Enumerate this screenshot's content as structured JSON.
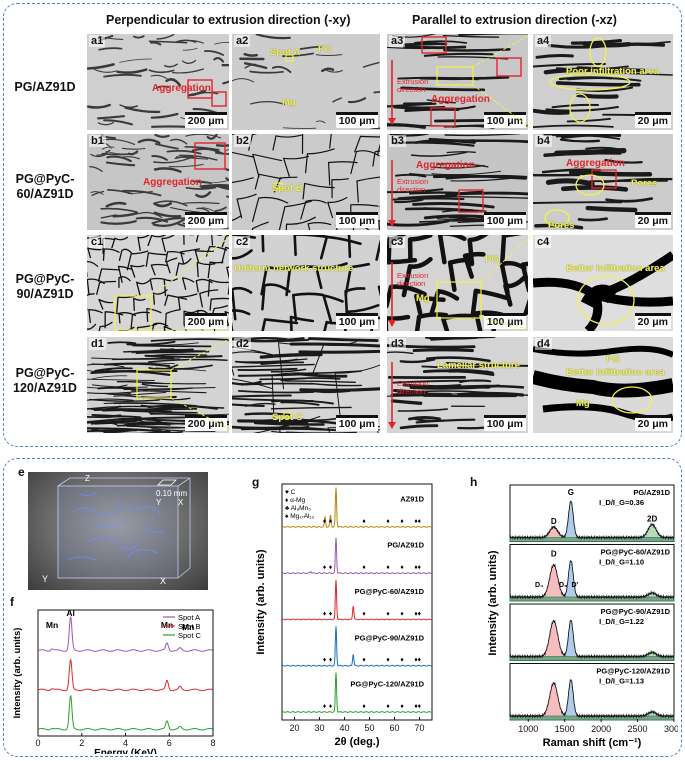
{
  "top": {
    "col_headers": [
      "Perpendicular to extrusion direction (-xy)",
      "Parallel to extrusion direction (-xz)"
    ],
    "rows": [
      {
        "label": "PG/AZ91D"
      },
      {
        "label": "PG@PyC-60/AZ91D"
      },
      {
        "label": "PG@PyC-90/AZ91D"
      },
      {
        "label": "PG@PyC-120/AZ91D"
      }
    ],
    "panels": {
      "a1": {
        "label": "a1",
        "scale": "200 μm",
        "ann": [
          "Aggregation"
        ]
      },
      "a2": {
        "label": "a2",
        "scale": "100 μm",
        "ann": [
          "Spot A",
          "PG",
          "Mg"
        ]
      },
      "a3": {
        "label": "a3",
        "scale": "100 μm",
        "ann": [
          "Aggregation",
          "Extrusion direction"
        ]
      },
      "a4": {
        "label": "a4",
        "scale": "20 μm",
        "ann": [
          "Poor infiltration area"
        ]
      },
      "b1": {
        "label": "b1",
        "scale": "200 μm",
        "ann": [
          "Aggregation"
        ]
      },
      "b2": {
        "label": "b2",
        "scale": "100 μm",
        "ann": [
          "Spot B"
        ]
      },
      "b3": {
        "label": "b3",
        "scale": "100 μm",
        "ann": [
          "Aggregation",
          "Extrusion direction"
        ]
      },
      "b4": {
        "label": "b4",
        "scale": "20 μm",
        "ann": [
          "Aggregation",
          "Pores",
          "Pores"
        ]
      },
      "c1": {
        "label": "c1",
        "scale": "200 μm",
        "ann": []
      },
      "c2": {
        "label": "c2",
        "scale": "100 μm",
        "ann": [
          "Uniform network structure"
        ]
      },
      "c3": {
        "label": "c3",
        "scale": "100 μm",
        "ann": [
          "PG",
          "Mg",
          "Extrusion direction"
        ]
      },
      "c4": {
        "label": "c4",
        "scale": "20 μm",
        "ann": [
          "Better infiltration area"
        ]
      },
      "d1": {
        "label": "d1",
        "scale": "200 μm",
        "ann": []
      },
      "d2": {
        "label": "d2",
        "scale": "100 μm",
        "ann": [
          "Spot C"
        ]
      },
      "d3": {
        "label": "d3",
        "scale": "100 μm",
        "ann": [
          "Lamellar structure",
          "Extrusion direction"
        ]
      },
      "d4": {
        "label": "d4",
        "scale": "20 μm",
        "ann": [
          "PG",
          "Better infiltration area",
          "Mg"
        ]
      }
    }
  },
  "bottom": {
    "e": {
      "label": "e",
      "scale": "0.10 mm",
      "axes": [
        "Z",
        "Y",
        "X",
        "Y",
        "X"
      ]
    },
    "f": {
      "label": "f"
    },
    "g": {
      "label": "g"
    },
    "h": {
      "label": "h"
    }
  },
  "chart_data": [
    {
      "id": "f",
      "type": "line",
      "xlabel": "Energy (KeV)",
      "ylabel": "Intensity (arb. units)",
      "xlim": [
        0,
        8
      ],
      "xticks": [
        "0",
        "2",
        "4",
        "6",
        "8"
      ],
      "legend": [
        "Spot A",
        "Spot B",
        "Spot C"
      ],
      "legend_position": "top-right",
      "colors": [
        "#9b59b6",
        "#e0262b",
        "#2ca02c"
      ],
      "peaks": [
        {
          "x": 0.64,
          "label": "Mn"
        },
        {
          "x": 1.49,
          "label": "Al"
        },
        {
          "x": 5.9,
          "label": "Mn"
        },
        {
          "x": 6.5,
          "label": "Mn"
        }
      ],
      "series": [
        {
          "name": "Spot A",
          "offset": 2,
          "peaks": [
            [
              0.64,
              0.05
            ],
            [
              1.49,
              0.9
            ],
            [
              5.9,
              0.2
            ],
            [
              6.5,
              0.06
            ]
          ]
        },
        {
          "name": "Spot B",
          "offset": 1,
          "peaks": [
            [
              0.64,
              0.04
            ],
            [
              1.49,
              0.8
            ],
            [
              5.9,
              0.25
            ],
            [
              6.5,
              0.08
            ]
          ]
        },
        {
          "name": "Spot C",
          "offset": 0,
          "peaks": [
            [
              0.64,
              0.03
            ],
            [
              1.49,
              0.9
            ],
            [
              5.9,
              0.22
            ],
            [
              6.5,
              0.06
            ]
          ]
        }
      ]
    },
    {
      "id": "g",
      "type": "line",
      "xlabel": "2θ (deg.)",
      "ylabel": "Intensity (arb. units)",
      "xlim": [
        15,
        75
      ],
      "xticks": [
        "20",
        "30",
        "40",
        "50",
        "60",
        "70"
      ],
      "legend": [
        "C",
        "α-Mg",
        "Al₈Mn₅",
        "Mg₁₇Al₁₂"
      ],
      "legend_position": "top-left",
      "series": [
        {
          "name": "AZ91D",
          "color": "#b8860b",
          "offset": 4,
          "peaks": [
            [
              36.6,
              1.0
            ],
            [
              32.2,
              0.25
            ],
            [
              34.4,
              0.3
            ]
          ]
        },
        {
          "name": "PG/AZ91D",
          "color": "#9b59b6",
          "offset": 3,
          "peaks": [
            [
              36.6,
              0.9
            ],
            [
              26.5,
              0.05
            ]
          ]
        },
        {
          "name": "PG@PyC-60/AZ91D",
          "color": "#e0262b",
          "offset": 2,
          "peaks": [
            [
              36.6,
              1.0
            ],
            [
              43.5,
              0.35
            ]
          ]
        },
        {
          "name": "PG@PyC-90/AZ91D",
          "color": "#1f6fc4",
          "offset": 1,
          "peaks": [
            [
              36.6,
              1.0
            ],
            [
              43.5,
              0.3
            ]
          ]
        },
        {
          "name": "PG@PyC-120/AZ91D",
          "color": "#2ca02c",
          "offset": 0,
          "peaks": [
            [
              36.6,
              1.0
            ]
          ]
        }
      ]
    },
    {
      "id": "h",
      "type": "line",
      "xlabel": "Raman shift (cm⁻¹)",
      "ylabel": "Intensity (arb. units)",
      "xlim": [
        750,
        3000
      ],
      "xticks": [
        "1000",
        "1500",
        "2000",
        "2500",
        "3000"
      ],
      "series": [
        {
          "name": "PG/AZ91D",
          "ratio": "I_D/I_G=0.36",
          "D": 0.36,
          "peak_labels": [
            "D",
            "G",
            "2D"
          ]
        },
        {
          "name": "PG@PyC-60/AZ91D",
          "ratio": "I_D/I_G=1.10",
          "D": 1.1,
          "peak_labels": [
            "D",
            "D₄",
            "D₃",
            "D'"
          ]
        },
        {
          "name": "PG@PyC-90/AZ91D",
          "ratio": "I_D/I_G=1.22",
          "D": 1.22,
          "peak_labels": []
        },
        {
          "name": "PG@PyC-120/AZ91D",
          "ratio": "I_D/I_G=1.13",
          "D": 1.13,
          "peak_labels": []
        }
      ]
    }
  ]
}
